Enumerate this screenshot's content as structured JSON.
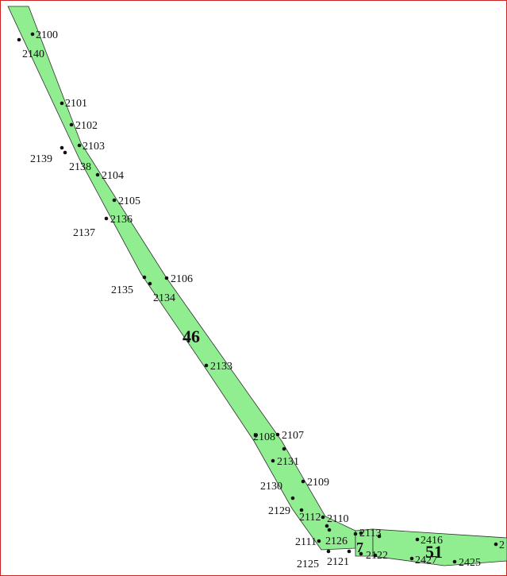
{
  "colors": {
    "parcel_fill": "#90ee90",
    "frame": "#cc2222",
    "point": "#111111"
  },
  "parcels": [
    {
      "id": "46",
      "label": "46"
    },
    {
      "id": "51",
      "label": "51"
    },
    {
      "id": "7",
      "label": "7"
    }
  ],
  "points": [
    "2100",
    "2140",
    "2101",
    "2102",
    "2103",
    "2139",
    "2138",
    "2104",
    "2105",
    "2136",
    "2137",
    "2106",
    "2135",
    "2134",
    "2133",
    "2108",
    "2107",
    "2131",
    "2130",
    "2109",
    "2129",
    "2112",
    "2110",
    "2111",
    "2126",
    "2113",
    "2416",
    "2125",
    "2121",
    "2122",
    "2427",
    "2425",
    "2"
  ]
}
